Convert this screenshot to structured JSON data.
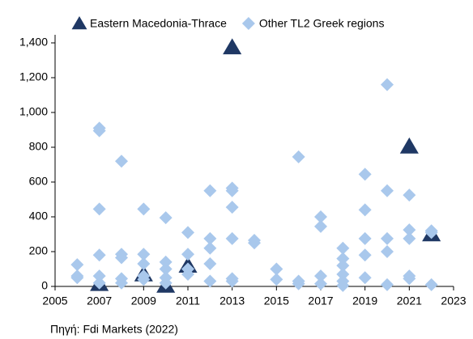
{
  "chart_data": {
    "type": "scatter",
    "series": [
      {
        "name": "Eastern Macedonia-Thrace",
        "color": "#1f3864",
        "marker": "triangle",
        "x": [
          2007,
          2009,
          2010,
          2011,
          2013,
          2021,
          2022
        ],
        "values": [
          15,
          70,
          5,
          120,
          1375,
          805,
          300
        ]
      },
      {
        "name": "Other TL2 Greek regions",
        "color": "#a9c8ec",
        "marker": "diamond",
        "x": [
          2006,
          2006,
          2006,
          2007,
          2007,
          2007,
          2007,
          2007,
          2007,
          2008,
          2008,
          2008,
          2008,
          2008,
          2009,
          2009,
          2009,
          2009,
          2009,
          2010,
          2010,
          2010,
          2010,
          2010,
          2011,
          2011,
          2011,
          2011,
          2012,
          2012,
          2012,
          2012,
          2012,
          2013,
          2013,
          2013,
          2013,
          2013,
          2013,
          2014,
          2014,
          2015,
          2015,
          2016,
          2016,
          2016,
          2017,
          2017,
          2017,
          2017,
          2018,
          2018,
          2018,
          2018,
          2018,
          2018,
          2019,
          2019,
          2019,
          2019,
          2019,
          2020,
          2020,
          2020,
          2020,
          2020,
          2021,
          2021,
          2021,
          2021,
          2021,
          2022,
          2022,
          2022
        ],
        "values": [
          125,
          60,
          50,
          910,
          895,
          445,
          180,
          60,
          20,
          720,
          185,
          165,
          45,
          20,
          445,
          185,
          130,
          60,
          40,
          395,
          140,
          100,
          50,
          20,
          310,
          185,
          100,
          70,
          550,
          275,
          220,
          130,
          30,
          565,
          550,
          455,
          275,
          45,
          30,
          265,
          250,
          100,
          40,
          745,
          30,
          15,
          400,
          345,
          60,
          15,
          220,
          160,
          120,
          70,
          30,
          5,
          645,
          440,
          275,
          180,
          50,
          1160,
          550,
          275,
          200,
          10,
          525,
          325,
          275,
          60,
          45,
          320,
          310,
          10
        ]
      }
    ],
    "xlim": [
      2005,
      2023
    ],
    "xticks": [
      2005,
      2007,
      2009,
      2011,
      2013,
      2015,
      2017,
      2019,
      2021,
      2023
    ],
    "ylim": [
      0,
      1400
    ],
    "yticks": [
      0,
      200,
      400,
      600,
      800,
      {
        "value": 1000,
        "label": "1,000"
      },
      {
        "value": 1200,
        "label": "1,200"
      },
      {
        "value": 1400,
        "label": "1,400"
      }
    ],
    "grid": false,
    "legend": "top",
    "source": "Πηγή: Fdi Markets (2022)"
  }
}
